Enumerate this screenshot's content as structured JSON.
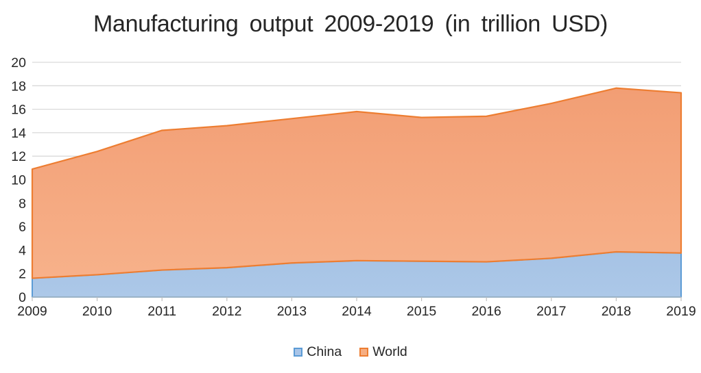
{
  "page": {
    "background": "#FFFFFF",
    "text_color": "#262626"
  },
  "chart_data": {
    "type": "area",
    "title": "Manufacturing output 2009-2019 (in trillion USD)",
    "xlabel": "",
    "ylabel": "",
    "x": [
      2009,
      2010,
      2011,
      2012,
      2013,
      2014,
      2015,
      2016,
      2017,
      2018,
      2019
    ],
    "series": [
      {
        "name": "China",
        "values": [
          1.6,
          1.9,
          2.3,
          2.5,
          2.9,
          3.1,
          3.05,
          3.0,
          3.3,
          3.85,
          3.75
        ],
        "fill_top": "#A6C3E5",
        "fill_bottom": "#ACC8E8",
        "border": "#5B9BD5",
        "legend_fill": "#A9C5E8"
      },
      {
        "name": "World",
        "values": [
          10.9,
          12.4,
          14.2,
          14.6,
          15.2,
          15.8,
          15.3,
          15.4,
          16.5,
          17.8,
          17.4
        ],
        "fill_top": "#F29E74",
        "fill_bottom": "#F7B18A",
        "border": "#ED7D31",
        "legend_fill": "#F6AE83"
      }
    ],
    "ylim": [
      0,
      20
    ],
    "yticks": [
      0,
      2,
      4,
      6,
      8,
      10,
      12,
      14,
      16,
      18,
      20
    ],
    "grid": "horizontal",
    "gridline_color": "#D9D9D9",
    "axis_color": "#BFBFBF",
    "tick_color": "#BFBFBF",
    "legend_position": "bottom"
  }
}
